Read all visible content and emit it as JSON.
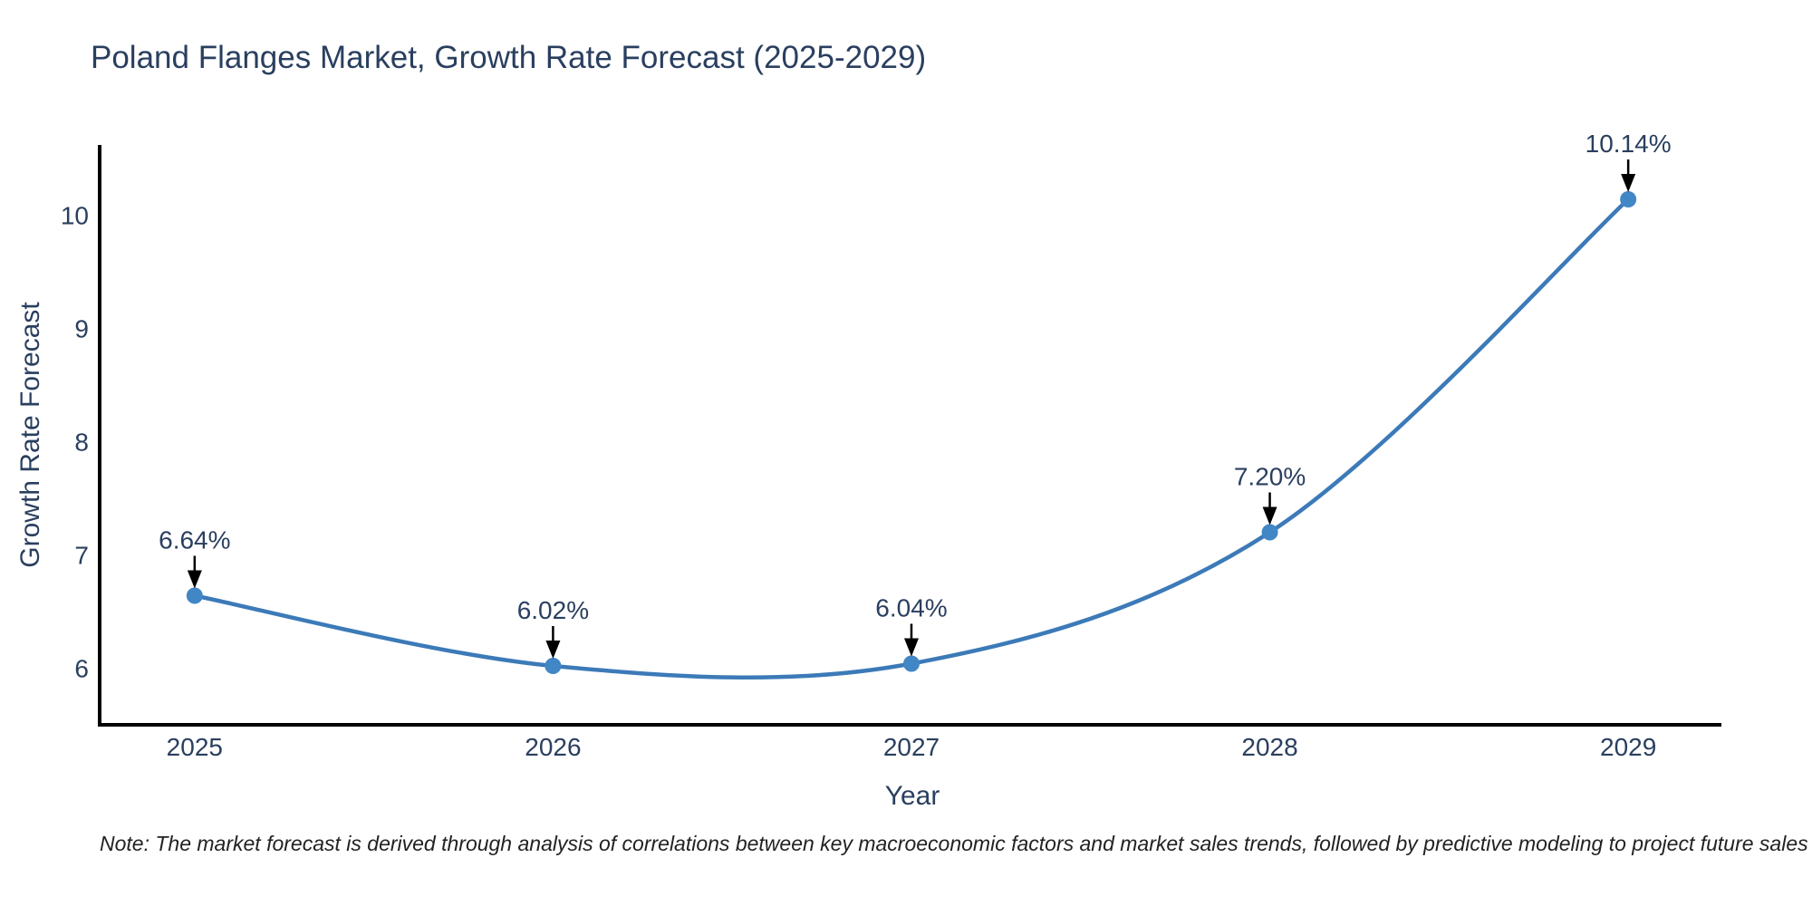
{
  "chart_data": {
    "type": "line",
    "title": "Poland Flanges Market, Growth Rate Forecast (2025-2029)",
    "xlabel": "Year",
    "ylabel": "Growth Rate Forecast",
    "categories": [
      2025,
      2026,
      2027,
      2028,
      2029
    ],
    "series": [
      {
        "name": "Growth Rate Forecast",
        "values": [
          6.64,
          6.02,
          6.04,
          7.2,
          10.14
        ],
        "point_labels": [
          "6.64%",
          "6.02%",
          "6.04%",
          "7.20%",
          "10.14%"
        ]
      }
    ],
    "y_ticks": [
      6,
      7,
      8,
      9,
      10
    ],
    "ylim": [
      5.5,
      10.62
    ],
    "xlim": [
      2024.735,
      2029.26
    ],
    "grid": false,
    "legend": "none",
    "line_style": "smooth-spline",
    "marker_style": "circle",
    "annotation_arrows": true,
    "colors": {
      "line": "#3c7ab8",
      "marker": "#4186c5",
      "axis": "#000000",
      "text": "#2a3f5f",
      "arrow": "#000000",
      "note_text": "#222222",
      "background": "#ffffff"
    },
    "note": "Note: The market forecast is derived through analysis of correlations between key macroeconomic factors and market sales trends, followed by predictive modeling to project future sales"
  }
}
